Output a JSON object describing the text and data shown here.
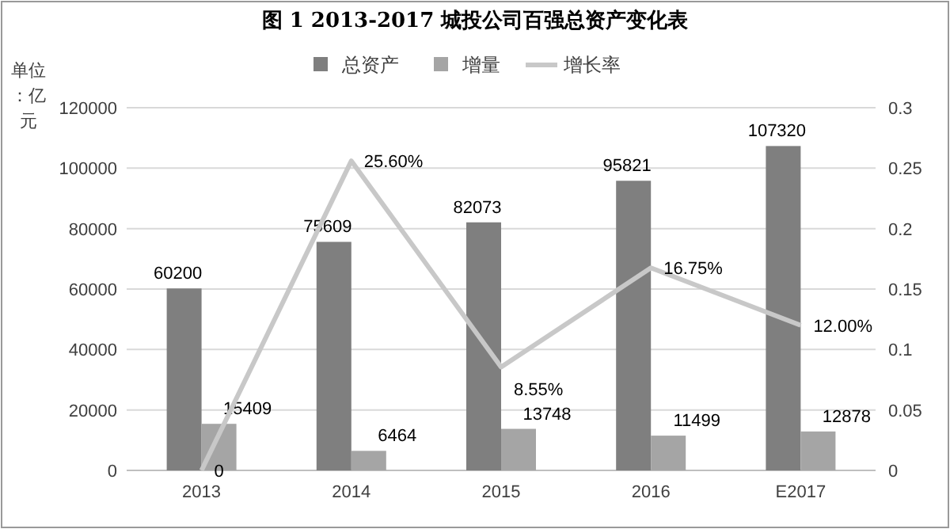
{
  "chart_data": {
    "type": "bar",
    "title": "图 1 2013-2017 城投公司百强总资产变化表",
    "ylabel": "单位：亿元",
    "categories": [
      "2013",
      "2014",
      "2015",
      "2016",
      "E2017"
    ],
    "series": [
      {
        "name": "总资产",
        "color": "#7f7f7f",
        "values": [
          60200,
          75609,
          82073,
          95821,
          107320
        ]
      },
      {
        "name": "增量",
        "color": "#a5a5a5",
        "values": [
          15409,
          6464,
          13748,
          11499,
          12878
        ]
      },
      {
        "name": "增长率",
        "type": "line",
        "axis": "y2",
        "color": "#c8c8c8",
        "values": [
          0,
          0.256,
          0.0855,
          0.1675,
          0.12
        ],
        "value_labels": [
          "0",
          "25.60%",
          "8.55%",
          "16.75%",
          "12.00%"
        ]
      }
    ],
    "ylim": [
      0,
      120000
    ],
    "yticks": [
      0,
      20000,
      40000,
      60000,
      80000,
      100000,
      120000
    ],
    "y2lim": [
      0,
      0.3
    ],
    "y2ticks": [
      0,
      0.05,
      0.1,
      0.15,
      0.2,
      0.25,
      0.3
    ],
    "grid": "y",
    "legend": "top",
    "data_labels": true
  }
}
